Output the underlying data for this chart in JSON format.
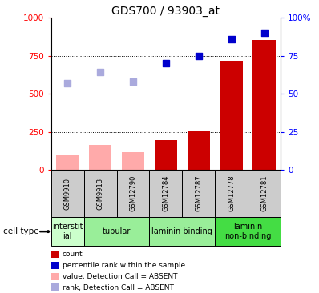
{
  "title": "GDS700 / 93903_at",
  "samples": [
    "GSM9910",
    "GSM9913",
    "GSM12790",
    "GSM12784",
    "GSM12787",
    "GSM12778",
    "GSM12781"
  ],
  "bar_values": [
    100,
    165,
    115,
    195,
    255,
    715,
    855
  ],
  "bar_absent": [
    true,
    true,
    true,
    false,
    false,
    false,
    false
  ],
  "scatter_rank": [
    57,
    64,
    58,
    70,
    75,
    86,
    90
  ],
  "scatter_rank_absent": [
    true,
    true,
    true,
    false,
    false,
    false,
    false
  ],
  "ylim_left": [
    0,
    1000
  ],
  "ylim_right": [
    0,
    100
  ],
  "yticks_left": [
    0,
    250,
    500,
    750,
    1000
  ],
  "ytick_labels_left": [
    "0",
    "250",
    "500",
    "750",
    "1000"
  ],
  "yticks_right": [
    0,
    25,
    50,
    75,
    100
  ],
  "ytick_labels_right": [
    "0",
    "25",
    "50",
    "75",
    "100%"
  ],
  "cell_type_groups": [
    {
      "label": "interstit\nial",
      "start": 0,
      "end": 1
    },
    {
      "label": "tubular",
      "start": 1,
      "end": 3
    },
    {
      "label": "laminin binding",
      "start": 3,
      "end": 5
    },
    {
      "label": "laminin\nnon-binding",
      "start": 5,
      "end": 7
    }
  ],
  "cell_type_colors": [
    "#ccffcc",
    "#99ee99",
    "#99ee99",
    "#44dd44"
  ],
  "bar_color_present": "#cc0000",
  "bar_color_absent": "#ffaaaa",
  "scatter_color_present": "#0000cc",
  "scatter_color_absent": "#aaaadd",
  "background_color": "#ffffff",
  "sample_box_color": "#cccccc",
  "legend_items": [
    {
      "color": "#cc0000",
      "label": "count"
    },
    {
      "color": "#0000cc",
      "label": "percentile rank within the sample"
    },
    {
      "color": "#ffaaaa",
      "label": "value, Detection Call = ABSENT"
    },
    {
      "color": "#aaaadd",
      "label": "rank, Detection Call = ABSENT"
    }
  ]
}
